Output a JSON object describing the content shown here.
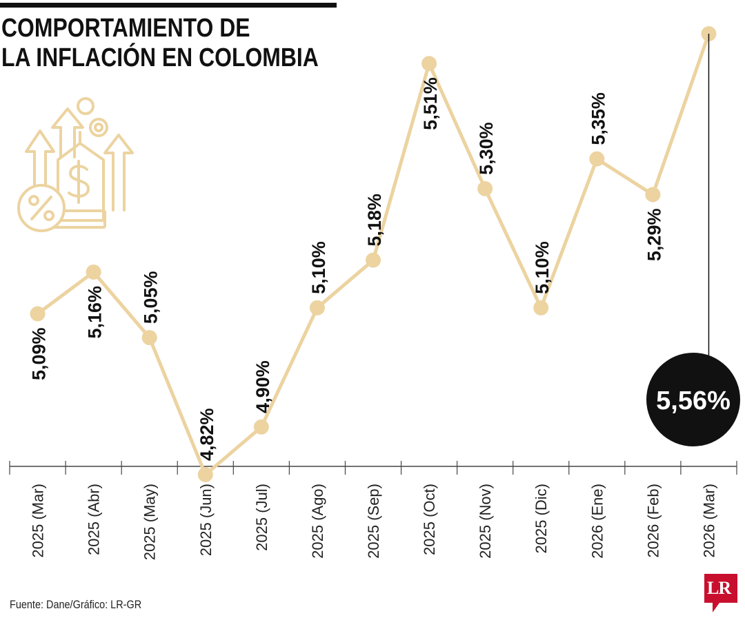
{
  "title": {
    "line1": "COMPORTAMIENTO DE",
    "line2": "LA INFLACIÓN EN COLOMBIA"
  },
  "chart_data": {
    "type": "line",
    "title": "COMPORTAMIENTO DE LA INFLACIÓN EN COLOMBIA",
    "categories": [
      "2025 (Mar)",
      "2025 (Abr)",
      "2025 (May)",
      "2025 (Jun)",
      "2025 (Jul)",
      "2025 (Ago)",
      "2025 (Sep)",
      "2025 (Oct)",
      "2025 (Nov)",
      "2025 (Dic)",
      "2026 (Ene)",
      "2026 (Feb)",
      "2026 (Mar)"
    ],
    "values": [
      5.09,
      5.16,
      5.05,
      4.82,
      4.9,
      5.1,
      5.18,
      5.51,
      5.3,
      5.1,
      5.35,
      5.29,
      5.56
    ],
    "value_labels": [
      "5,09%",
      "5,16%",
      "5,05%",
      "4,82%",
      "4,90%",
      "5,10%",
      "5,18%",
      "5,51%",
      "5,30%",
      "5,10%",
      "5,35%",
      "5,29%",
      "5,56%"
    ],
    "highlight": {
      "index": 12,
      "label": "5,56%"
    },
    "xlabel": "",
    "ylabel": "",
    "ylim": [
      4.82,
      5.56
    ],
    "grid": false,
    "legend": "none",
    "colors": {
      "line": "#ecd3a0",
      "marker": "#ecd3a0",
      "highlight": "#111111",
      "axis": "#444444",
      "label": "#111111"
    }
  },
  "icon": "inflation-money-arrows-icon",
  "source": "Fuente: Dane/Gráfico: LR-GR",
  "logo": {
    "text": "LR",
    "color": "#c8102e"
  }
}
